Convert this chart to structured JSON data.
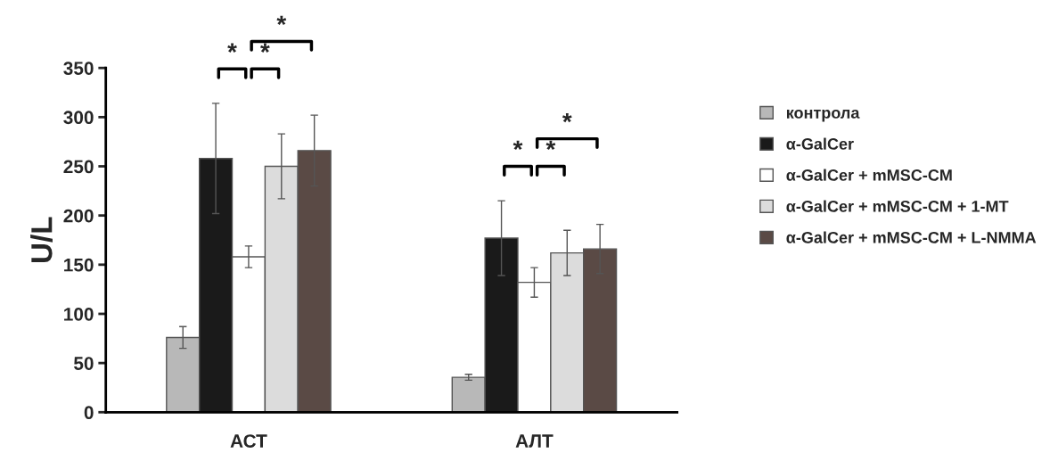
{
  "chart_data": {
    "type": "bar",
    "ylabel": "U/L",
    "categories": [
      "АСТ",
      "АЛТ"
    ],
    "series": [
      {
        "name": "контрола",
        "color": "#b8b8b8",
        "values": [
          76,
          35.5
        ],
        "errors": [
          11,
          3
        ]
      },
      {
        "name": "α-GalCer",
        "color": "#1a1a1a",
        "values": [
          258,
          177
        ],
        "errors": [
          56,
          38
        ]
      },
      {
        "name": "α-GalCer + mMSC-CM",
        "color": "#ffffff",
        "values": [
          158,
          132
        ],
        "errors": [
          11,
          15
        ]
      },
      {
        "name": "α-GalCer + mMSC-CM + 1-MT",
        "color": "#dcdcdc",
        "values": [
          250,
          162
        ],
        "errors": [
          33,
          23
        ]
      },
      {
        "name": "α-GalCer + mMSC-CM + L-NMMA",
        "color": "#5a4a45",
        "values": [
          266,
          166
        ],
        "errors": [
          36,
          25
        ]
      }
    ],
    "ylim": [
      0,
      350
    ],
    "yticks": [
      0,
      50,
      100,
      150,
      200,
      250,
      300,
      350
    ],
    "annotations": [
      "*",
      "*",
      "*",
      "*",
      "*",
      "*"
    ],
    "grid": false,
    "legend": "right"
  }
}
